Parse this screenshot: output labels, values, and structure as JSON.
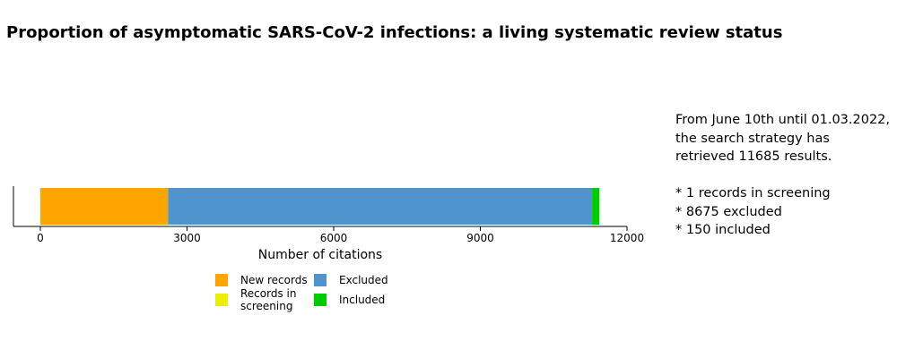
{
  "chart_data": {
    "type": "bar",
    "orientation": "horizontal",
    "stacked": true,
    "title": "Proportion of asymptomatic SARS-CoV-2 infections: a living systematic review status",
    "xlabel": "Number of citations",
    "ylabel": "",
    "xlim": [
      -550,
      12000
    ],
    "xticks": [
      0,
      3000,
      6000,
      9000,
      12000
    ],
    "xtick_labels": [
      "0",
      "3000",
      "6000",
      "9000",
      "12000"
    ],
    "grid": false,
    "legend_position": "bottom",
    "series": [
      {
        "name": "New records",
        "value": 2610,
        "color": "#FFA500"
      },
      {
        "name": "Records in screening",
        "value": 1,
        "color": "#EEEE00"
      },
      {
        "name": "Excluded",
        "value": 8675,
        "color": "#4F94CD"
      },
      {
        "name": "Included",
        "value": 150,
        "color": "#00CD00"
      }
    ],
    "legend_order": [
      "New records",
      "Records in screening",
      "Excluded",
      "Included"
    ]
  },
  "summary": {
    "line1": "From June 10th until 01.03.2022,",
    "line2": "the search strategy has",
    "line3": "retrieved 11685 results.",
    "bullet1": "* 1 records in screening",
    "bullet2": "* 8675 excluded",
    "bullet3": "* 150 included"
  }
}
